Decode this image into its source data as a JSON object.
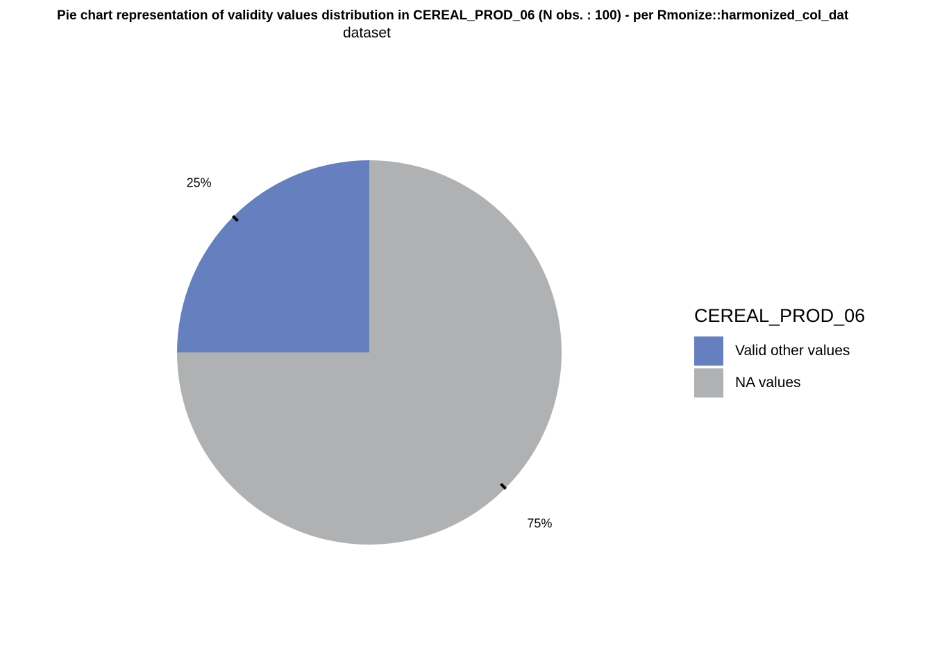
{
  "chart_data": {
    "type": "pie",
    "title_line1": "Pie chart representation of validity values distribution in CEREAL_PROD_06 (N obs. : 100) - per Rmonize::harmonized_col_dat",
    "title_line2": "dataset",
    "legend_title": "CEREAL_PROD_06",
    "slices": [
      {
        "label": "Valid other values",
        "value": 25,
        "display": "25%",
        "color": "#6680BF"
      },
      {
        "label": "NA values",
        "value": 75,
        "display": "75%",
        "color": "#B0B1B2"
      }
    ],
    "legend_placement": "right"
  }
}
